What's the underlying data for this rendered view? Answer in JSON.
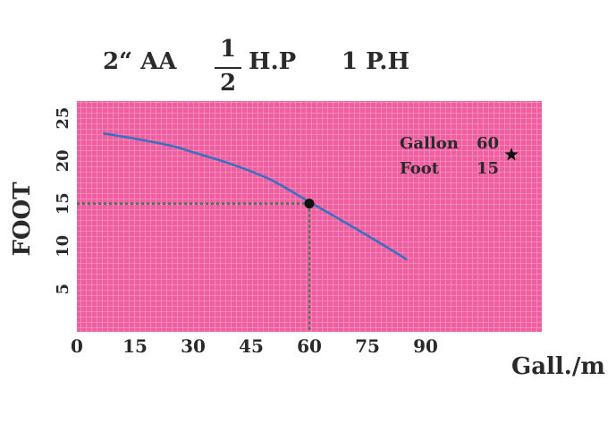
{
  "header": {
    "pipe": "2“ AA",
    "frac_num": "1",
    "frac_den": "2",
    "hp": "H.P",
    "phase": "1 P.H"
  },
  "colors": {
    "plot_bg": "#ef5fa0",
    "grid": "#f6a9cc",
    "curve": "#3b6fc4",
    "guide": "#3f7a52",
    "point": "#111111"
  },
  "chart_data": {
    "type": "line",
    "title": "",
    "xlabel": "Gall./m",
    "ylabel": "FOOT",
    "xlim": [
      0,
      120
    ],
    "ylim": [
      0,
      27
    ],
    "xticks": [
      "0",
      "15",
      "30",
      "45",
      "60",
      "75",
      "90"
    ],
    "yticks": [
      "5",
      "10",
      "15",
      "20",
      "25"
    ],
    "grid": true,
    "series": [
      {
        "x": [
          7,
          15,
          25,
          30,
          40,
          50,
          60,
          70,
          80,
          85
        ],
        "y": [
          23.2,
          22.6,
          21.7,
          21.0,
          19.6,
          17.8,
          15.2,
          12.6,
          9.9,
          8.5
        ]
      }
    ],
    "highlight": {
      "x": 60,
      "y": 15
    },
    "annotation": {
      "rows": [
        {
          "label": "Gallon",
          "value": "60"
        },
        {
          "label": "Foot",
          "value": "15"
        }
      ],
      "marker": "star-icon"
    }
  }
}
